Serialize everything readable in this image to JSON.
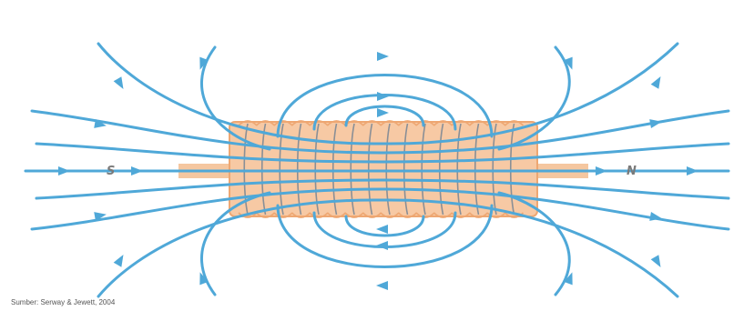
{
  "figure": {
    "source_caption": "Sumber: Serway & Jewett, 2004",
    "pole_left": "S",
    "pole_right": "N",
    "colors": {
      "field_line": "#4fa8d8",
      "coil_body": "#f7c9a4",
      "coil_edge": "#eea772",
      "coil_turn": "#8a8f96",
      "core": "#f5c7a0",
      "caption": "#555555",
      "pole_label": "#7a7a7a"
    }
  }
}
